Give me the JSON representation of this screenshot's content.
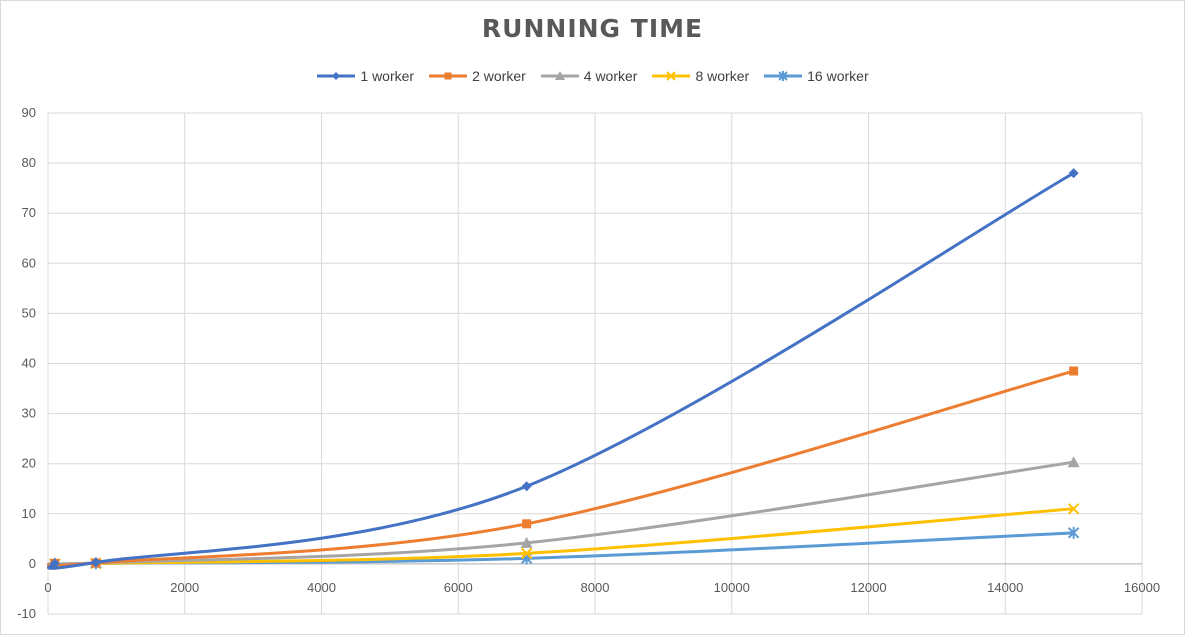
{
  "chart_data": {
    "type": "line",
    "title": "RUNNING TIME",
    "xlabel": "",
    "ylabel": "",
    "xlim": [
      0,
      16000
    ],
    "ylim": [
      -10,
      90
    ],
    "x_ticks": [
      0,
      2000,
      4000,
      6000,
      8000,
      10000,
      12000,
      14000,
      16000
    ],
    "y_ticks": [
      -10,
      0,
      10,
      20,
      30,
      40,
      50,
      60,
      70,
      80,
      90
    ],
    "grid": true,
    "legend_position": "top",
    "x": [
      100,
      700,
      7000,
      15000
    ],
    "series": [
      {
        "name": "1 worker",
        "values": [
          0.1,
          0.3,
          15.5,
          78
        ],
        "color": "#4472c4",
        "marker": "diamond"
      },
      {
        "name": "2 worker",
        "values": [
          0.1,
          0.2,
          8.0,
          38.5
        ],
        "color": "#ed7d31",
        "marker": "square"
      },
      {
        "name": "4 worker",
        "values": [
          0.1,
          0.2,
          4.2,
          20.3
        ],
        "color": "#a5a5a5",
        "marker": "triangle"
      },
      {
        "name": "8 worker",
        "values": [
          0.0,
          0.1,
          2.1,
          11.0
        ],
        "color": "#ffc000",
        "marker": "x"
      },
      {
        "name": "16 worker",
        "values": [
          0.0,
          0.1,
          1.1,
          6.2
        ],
        "color": "#5b9bd5",
        "marker": "star"
      }
    ]
  }
}
